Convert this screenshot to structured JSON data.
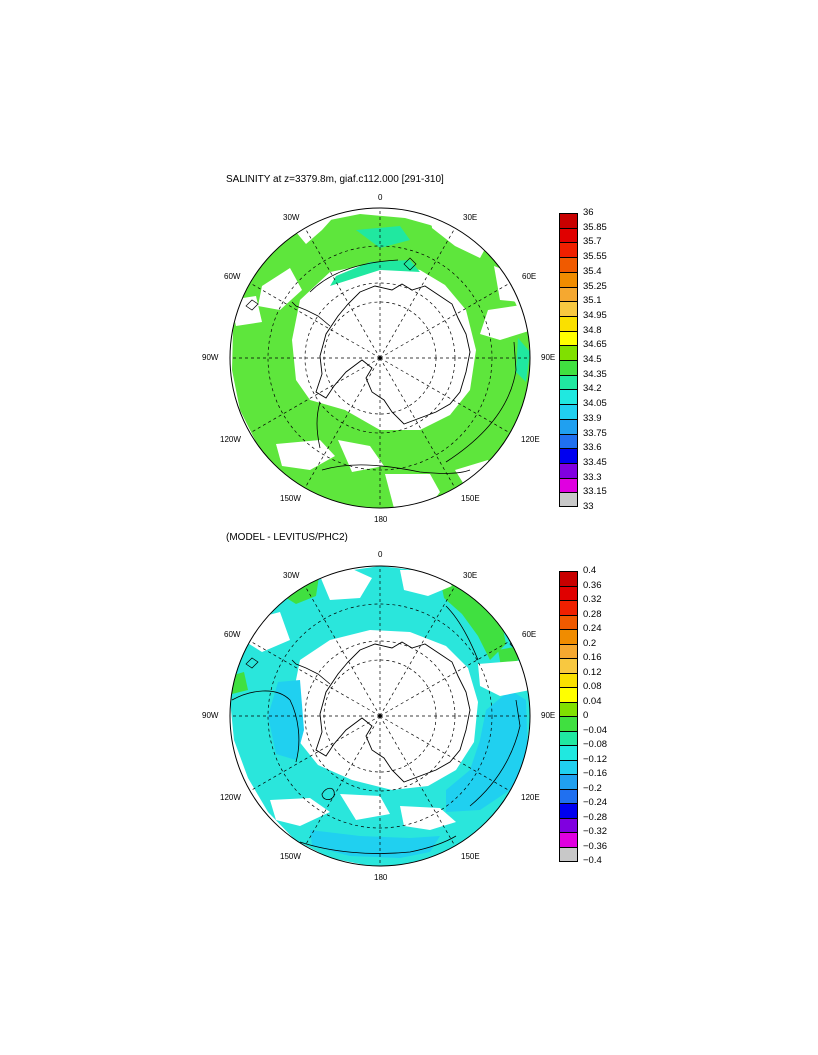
{
  "panels": [
    {
      "title": "SALINITY at z=3379.8m, giaf.c112.000 [291-310]",
      "meridian_labels": {
        "lon_0": "0",
        "lon_30e": "30E",
        "lon_60e": "60E",
        "lon_90e": "90E",
        "lon_120e": "120E",
        "lon_150e": "150E",
        "lon_180": "180",
        "lon_150w": "150W",
        "lon_120w": "120W",
        "lon_90w": "90W",
        "lon_60w": "60W",
        "lon_30w": "30W"
      },
      "colorbar": {
        "ticks": [
          "36",
          "35.85",
          "35.7",
          "35.55",
          "35.4",
          "35.25",
          "35.1",
          "34.95",
          "34.8",
          "34.65",
          "34.5",
          "34.35",
          "34.2",
          "34.05",
          "33.9",
          "33.75",
          "33.6",
          "33.45",
          "33.3",
          "33.15",
          "33"
        ],
        "colors": [
          "#c80000",
          "#e00000",
          "#f02000",
          "#f05a00",
          "#f08c00",
          "#f5a830",
          "#f8c840",
          "#fae000",
          "#ffff00",
          "#80e000",
          "#40e040",
          "#20e8a0",
          "#20e8e0",
          "#20d0f0",
          "#20a0f0",
          "#2070f0",
          "#0000f0",
          "#8000e0",
          "#e000e0",
          "#c8c8c8",
          "#707070"
        ]
      },
      "dominant_fill": "#5ee63c"
    },
    {
      "title": "(MODEL - LEVITUS/PHC2)",
      "meridian_labels": {
        "lon_0": "0",
        "lon_30e": "30E",
        "lon_60e": "60E",
        "lon_90e": "90E",
        "lon_120e": "120E",
        "lon_150e": "150E",
        "lon_180": "180",
        "lon_150w": "150W",
        "lon_120w": "120W",
        "lon_90w": "90W",
        "lon_60w": "60W",
        "lon_30w": "30W"
      },
      "colorbar": {
        "ticks": [
          "0.4",
          "0.36",
          "0.32",
          "0.28",
          "0.24",
          "0.2",
          "0.16",
          "0.12",
          "0.08",
          "0.04",
          "0",
          "−0.04",
          "−0.08",
          "−0.12",
          "−0.16",
          "−0.2",
          "−0.24",
          "−0.28",
          "−0.32",
          "−0.36",
          "−0.4"
        ],
        "colors": [
          "#c80000",
          "#e00000",
          "#f02000",
          "#f05a00",
          "#f08c00",
          "#f5a830",
          "#f8c840",
          "#fae000",
          "#ffff00",
          "#80e000",
          "#40e040",
          "#20e8a0",
          "#20e8e0",
          "#20d0f0",
          "#20a0f0",
          "#2070f0",
          "#0000f0",
          "#8000e0",
          "#e000e0",
          "#c8c8c8",
          "#707070"
        ]
      },
      "dominant_fill": "#2ae6dc"
    }
  ]
}
